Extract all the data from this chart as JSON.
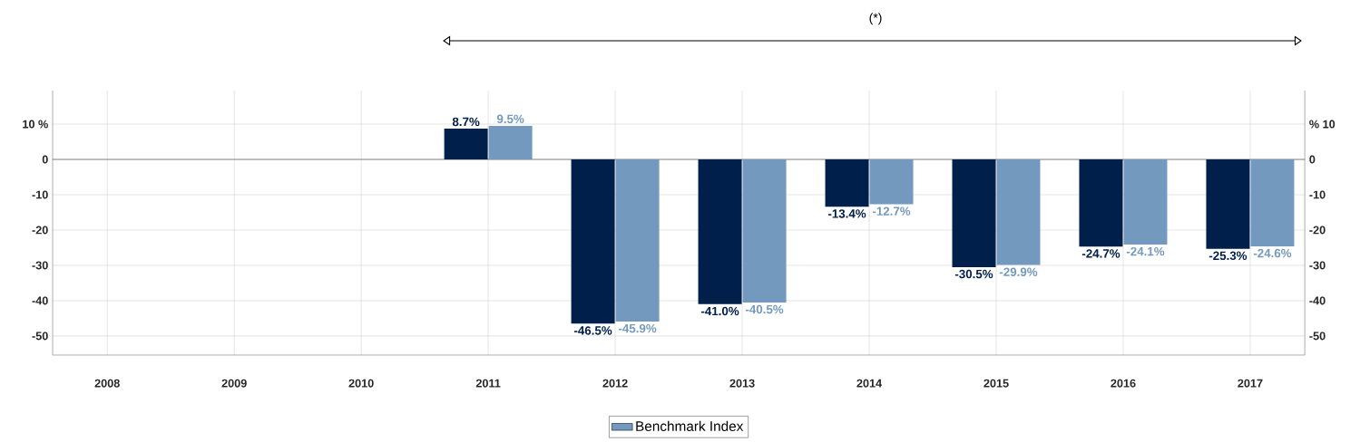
{
  "chart_data": {
    "type": "bar",
    "annotations": [
      "(*)"
    ],
    "categories": [
      "2008",
      "2009",
      "2010",
      "2011",
      "2012",
      "2013",
      "2014",
      "2015",
      "2016",
      "2017"
    ],
    "series": [
      {
        "color": "#001f4b",
        "values": [
          null,
          null,
          null,
          8.7,
          -46.5,
          -41.0,
          -13.4,
          -30.5,
          -24.7,
          -25.3
        ],
        "value_labels": [
          null,
          null,
          null,
          "8.7%",
          "-46.5%",
          "-41.0%",
          "-13.4%",
          "-30.5%",
          "-24.7%",
          "-25.3%"
        ]
      },
      {
        "name": "Benchmark Index",
        "color": "#7399bf",
        "values": [
          null,
          null,
          null,
          9.5,
          -45.9,
          -40.5,
          -12.7,
          -29.9,
          -24.1,
          -24.6
        ],
        "value_labels": [
          null,
          null,
          null,
          "9.5%",
          "-45.9%",
          "-40.5%",
          "-12.7%",
          "-29.9%",
          "-24.1%",
          "-24.6%"
        ]
      }
    ],
    "ylim": [
      -55.4,
      19.5
    ],
    "yticks": [
      -50,
      -40,
      -30,
      -20,
      -10,
      0,
      {
        "value": 10,
        "label": "10  %"
      }
    ],
    "y2lim": [
      -55.4,
      19.5
    ],
    "y2ticks": [
      -50,
      -40,
      -30,
      -20,
      -10,
      0,
      {
        "value": 10,
        "label": "%  10"
      }
    ],
    "grid": true,
    "legend": "bottom"
  }
}
